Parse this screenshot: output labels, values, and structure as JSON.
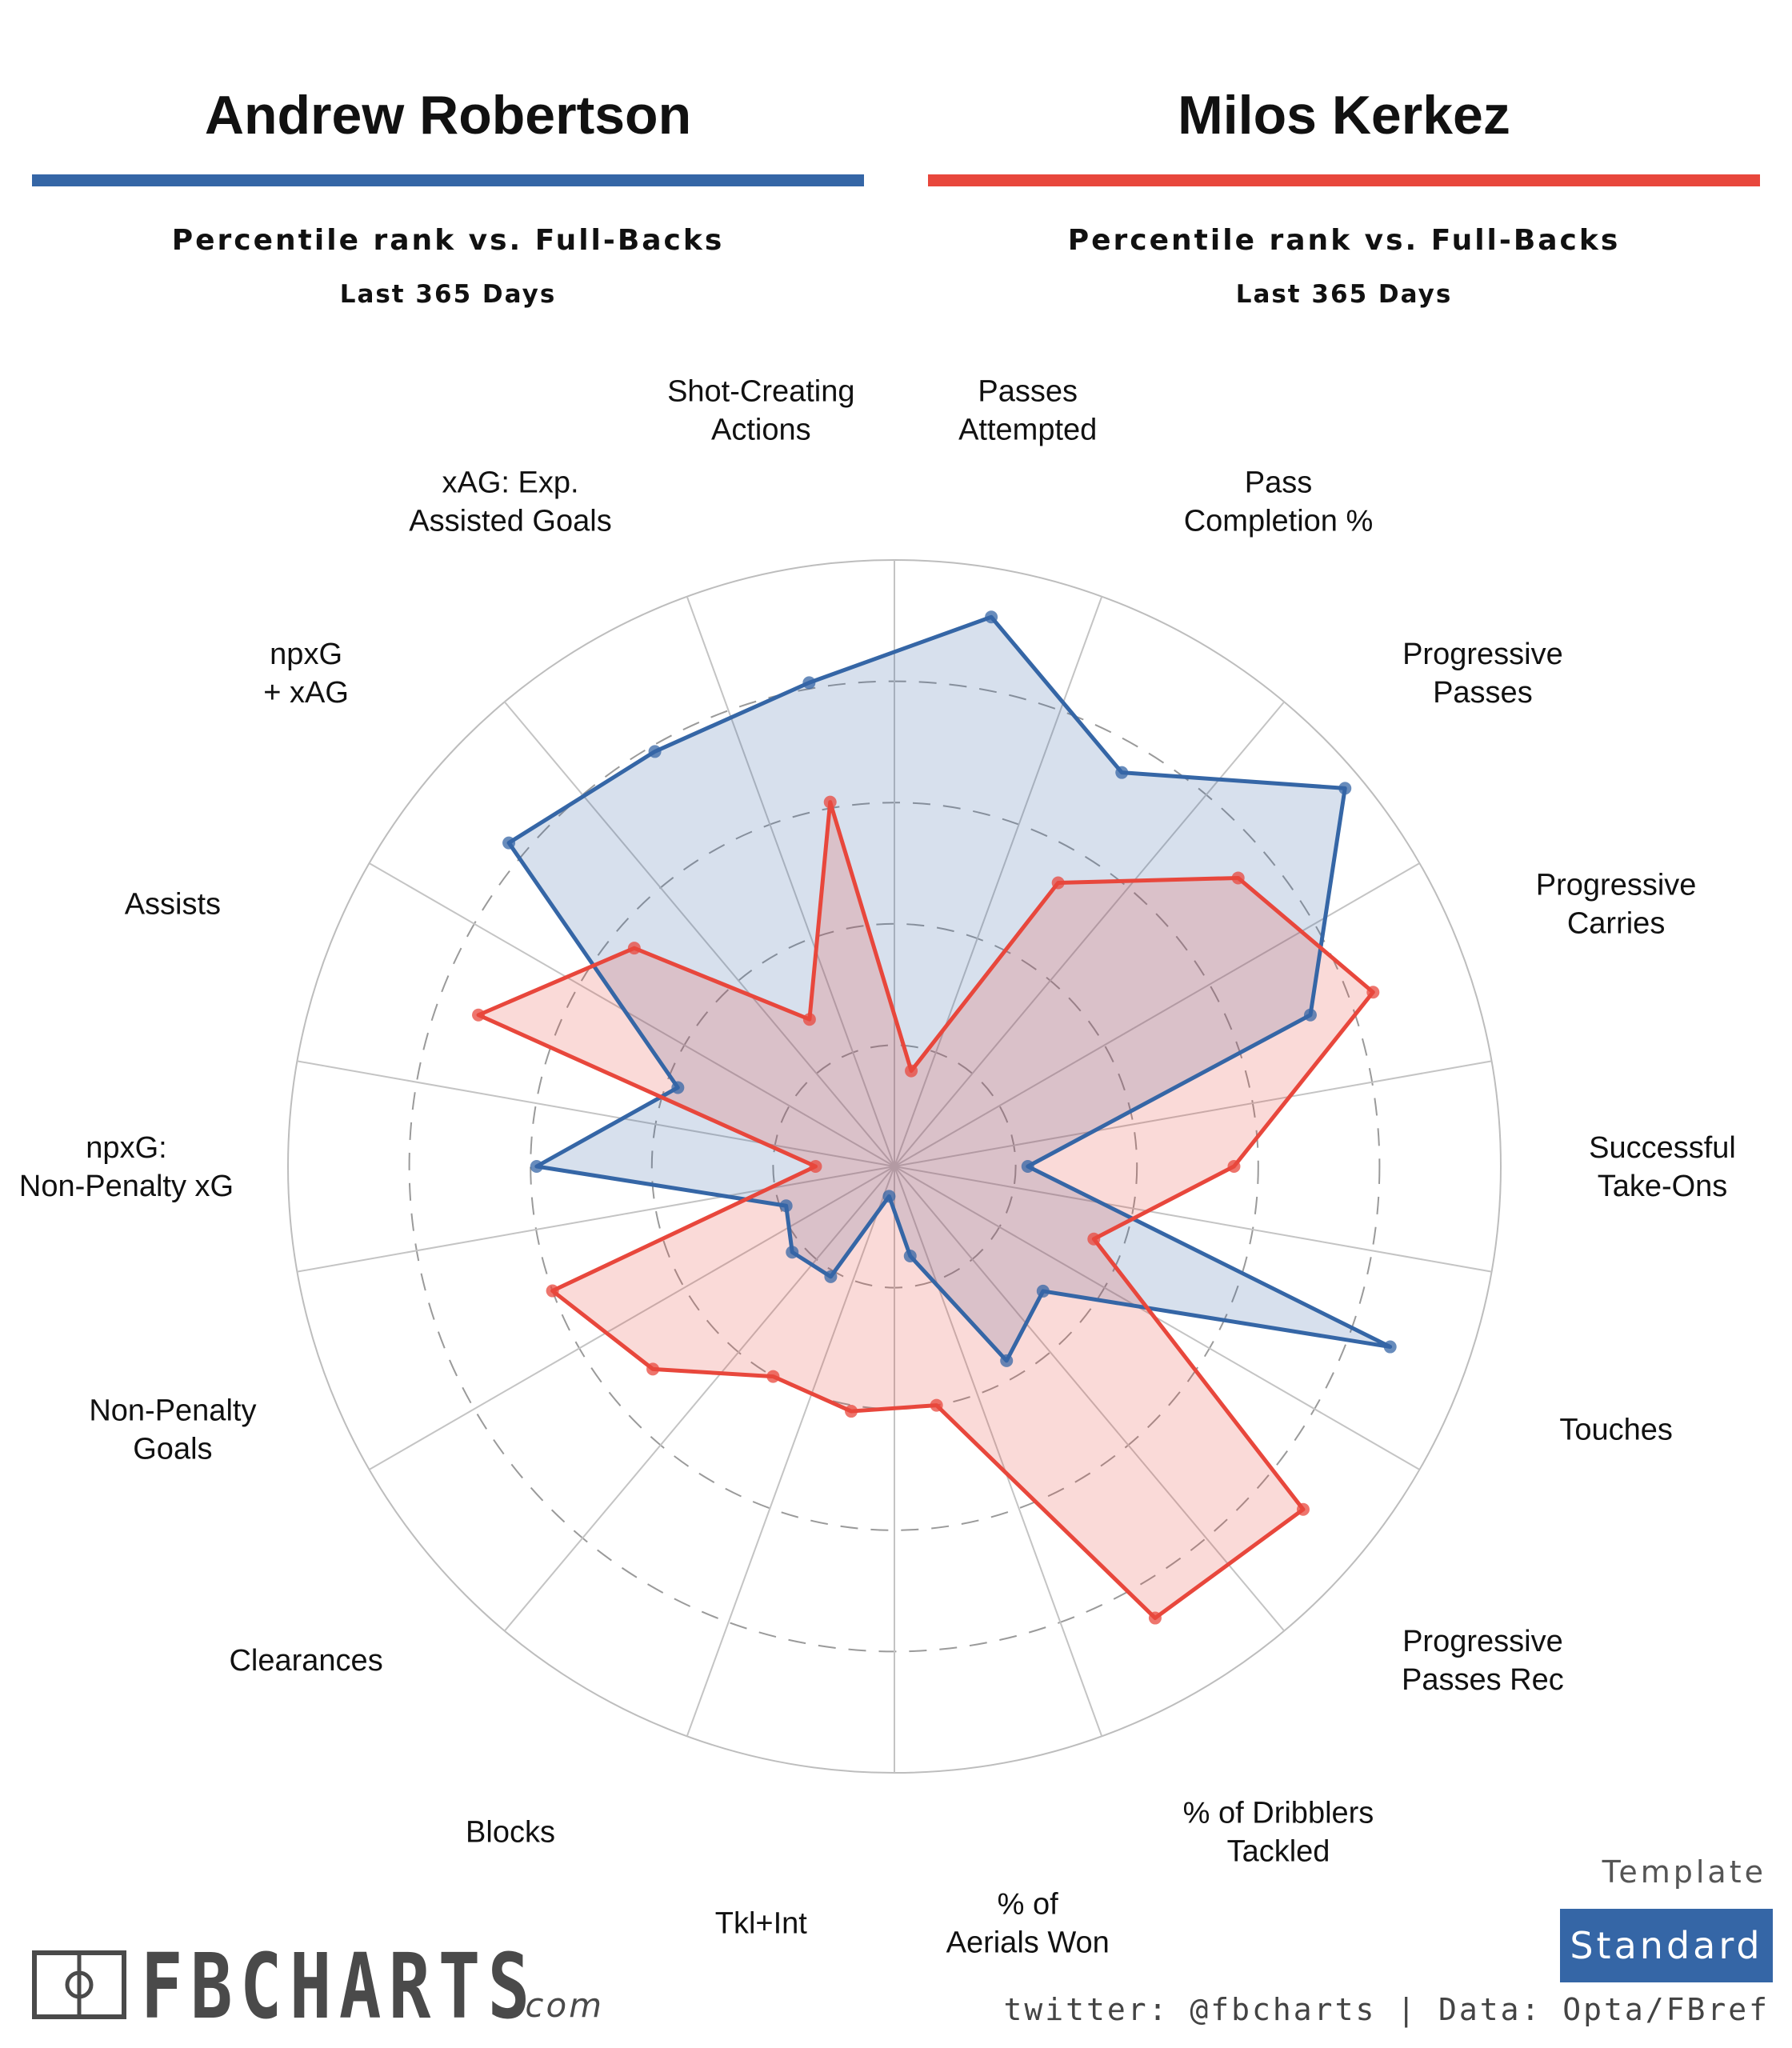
{
  "players": [
    {
      "name": "Andrew Robertson",
      "color": "#3566a6",
      "subtitle": "Percentile rank vs. Full-Backs",
      "period": "Last 365 Days"
    },
    {
      "name": "Milos Kerkez",
      "color": "#e8473c",
      "subtitle": "Percentile rank vs. Full-Backs",
      "period": "Last 365 Days"
    }
  ],
  "chart_data": {
    "type": "radar",
    "rlim": [
      0,
      100
    ],
    "rings": [
      20,
      40,
      60,
      80
    ],
    "categories": [
      "Passes Attempted",
      "Pass Completion %",
      "Progressive Passes",
      "Progressive Carries",
      "Successful Take-Ons",
      "Touches",
      "Progressive Passes Rec",
      "% of Dribblers Tackled",
      "% of Aerials Won",
      "Tkl+Int",
      "Blocks",
      "Clearances",
      "Non-Penalty Goals",
      "npxG: Non-Penalty xG",
      "Assists",
      "npxG + xAG",
      "xAG: Exp. Assisted Goals",
      "Shot-Creating Actions"
    ],
    "series": [
      {
        "name": "Andrew Robertson",
        "color": "#3566a6",
        "values": [
          92,
          75,
          97,
          73,
          22,
          87,
          32,
          37,
          15,
          5,
          21,
          22,
          19,
          59,
          38,
          83,
          79,
          81
        ]
      },
      {
        "name": "Milos Kerkez",
        "color": "#e8473c",
        "values": [
          16,
          54,
          74,
          84,
          56,
          35,
          88,
          86,
          40,
          41,
          40,
          52,
          60,
          13,
          73,
          56,
          28,
          61
        ]
      }
    ]
  },
  "template": {
    "label": "Template",
    "value": "Standard"
  },
  "brand": {
    "name": "FBCHARTS",
    "suffix": ".com"
  },
  "credits": "twitter: @fbcharts | Data: Opta/FBref"
}
